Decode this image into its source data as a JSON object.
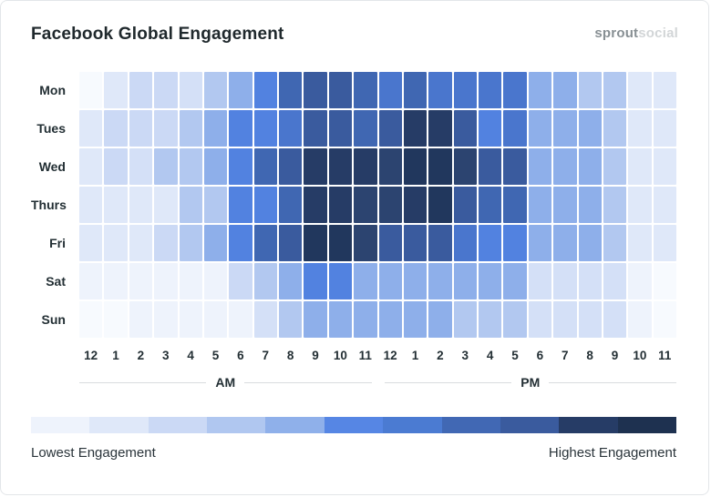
{
  "header": {
    "title": "Facebook Global Engagement",
    "logo_bold": "sprout",
    "logo_light": "social"
  },
  "chart_data": {
    "type": "heatmap",
    "title": "Facebook Global Engagement",
    "rows": [
      "Mon",
      "Tues",
      "Wed",
      "Thurs",
      "Fri",
      "Sat",
      "Sun"
    ],
    "columns": [
      "12",
      "1",
      "2",
      "3",
      "4",
      "5",
      "6",
      "7",
      "8",
      "9",
      "10",
      "11",
      "12",
      "1",
      "2",
      "3",
      "4",
      "5",
      "6",
      "7",
      "8",
      "9",
      "10",
      "11"
    ],
    "column_groups": [
      {
        "label": "AM",
        "span": 12
      },
      {
        "label": "PM",
        "span": 12
      }
    ],
    "palette": [
      "#f7fafe",
      "#eef3fc",
      "#dfe8f9",
      "#d4e0f7",
      "#cbd9f5",
      "#b2c8f0",
      "#8eafea",
      "#5282e0",
      "#4a76cd",
      "#4067b2",
      "#3a5b9e",
      "#2c4470",
      "#263c66",
      "#21375d"
    ],
    "grid": [
      [
        0,
        2,
        4,
        4,
        3,
        5,
        6,
        7,
        9,
        10,
        10,
        9,
        8,
        9,
        8,
        8,
        8,
        8,
        6,
        6,
        5,
        5,
        2,
        2
      ],
      [
        2,
        4,
        4,
        4,
        5,
        6,
        7,
        7,
        8,
        10,
        10,
        9,
        10,
        12,
        12,
        10,
        7,
        8,
        6,
        6,
        6,
        5,
        2,
        2
      ],
      [
        2,
        4,
        3,
        5,
        5,
        6,
        7,
        9,
        10,
        12,
        12,
        12,
        11,
        13,
        13,
        11,
        10,
        10,
        6,
        6,
        6,
        5,
        2,
        2
      ],
      [
        2,
        2,
        2,
        2,
        5,
        5,
        7,
        7,
        9,
        12,
        12,
        11,
        11,
        12,
        13,
        10,
        9,
        9,
        6,
        6,
        6,
        5,
        2,
        2
      ],
      [
        2,
        2,
        2,
        4,
        5,
        6,
        7,
        9,
        10,
        13,
        13,
        11,
        10,
        10,
        10,
        8,
        7,
        7,
        6,
        6,
        6,
        5,
        2,
        2
      ],
      [
        1,
        1,
        1,
        1,
        1,
        1,
        4,
        5,
        6,
        7,
        7,
        6,
        6,
        6,
        6,
        6,
        6,
        6,
        3,
        3,
        3,
        3,
        1,
        0
      ],
      [
        0,
        0,
        1,
        1,
        1,
        1,
        1,
        3,
        5,
        6,
        6,
        6,
        6,
        6,
        6,
        5,
        5,
        5,
        3,
        3,
        3,
        3,
        1,
        0
      ]
    ],
    "legend": {
      "colors": [
        "#eef3fc",
        "#dfe8f9",
        "#cbd9f5",
        "#b0c7f0",
        "#8fb0ea",
        "#5686e4",
        "#4b7bd2",
        "#4168b4",
        "#3a5b9e",
        "#263c66",
        "#1e3150"
      ],
      "min_label": "Lowest Engagement",
      "max_label": "Highest Engagement"
    }
  }
}
